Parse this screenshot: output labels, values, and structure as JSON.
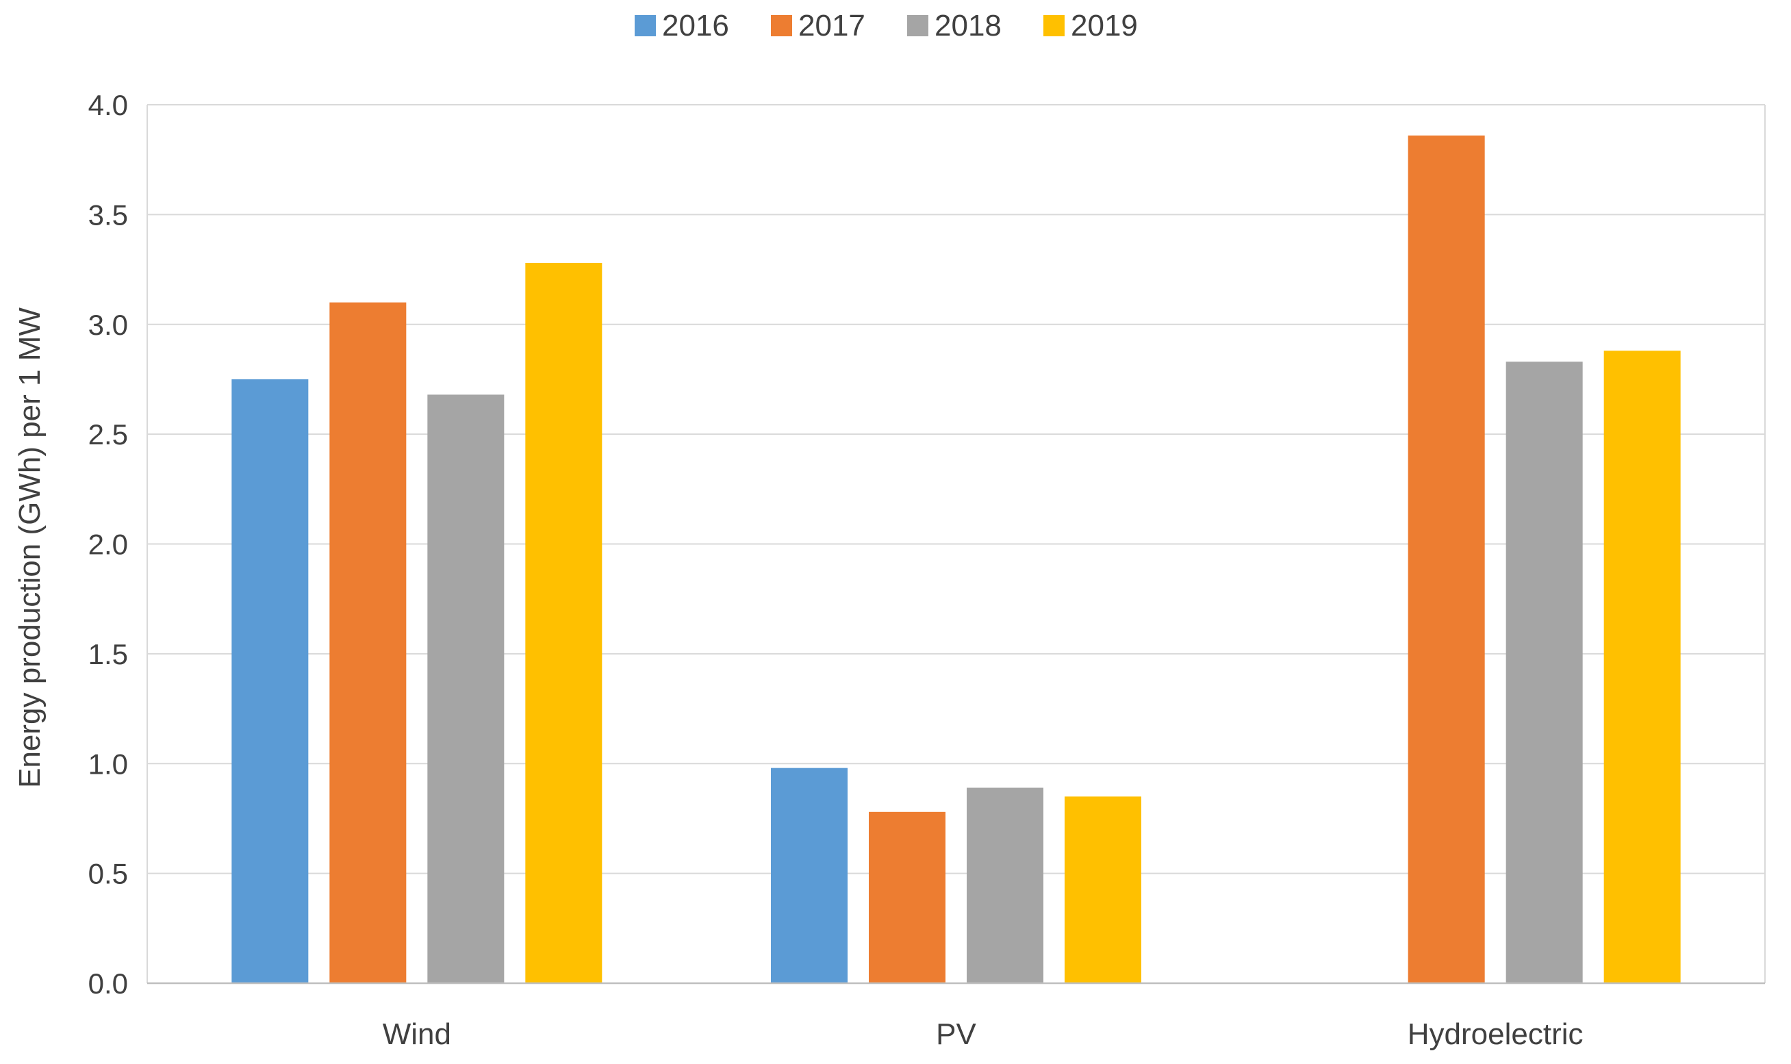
{
  "chart_data": {
    "type": "bar",
    "title": "",
    "xlabel": "",
    "ylabel": "Energy production (GWh) per 1 MW",
    "categories": [
      "Wind",
      "PV",
      "Hydroelectric"
    ],
    "ylim": [
      0,
      4.0
    ],
    "yticks": [
      "0.0",
      "0.5",
      "1.0",
      "1.5",
      "2.0",
      "2.5",
      "3.0",
      "3.5",
      "4.0"
    ],
    "grid": true,
    "legend_position": "top",
    "series": [
      {
        "name": "2016",
        "color": "#5B9BD5",
        "values": [
          2.75,
          0.98,
          null
        ]
      },
      {
        "name": "2017",
        "color": "#ED7D31",
        "values": [
          3.1,
          0.78,
          3.86
        ]
      },
      {
        "name": "2018",
        "color": "#A5A5A5",
        "values": [
          2.68,
          0.89,
          2.83
        ]
      },
      {
        "name": "2019",
        "color": "#FFC000",
        "values": [
          3.28,
          0.85,
          2.88
        ]
      }
    ]
  }
}
